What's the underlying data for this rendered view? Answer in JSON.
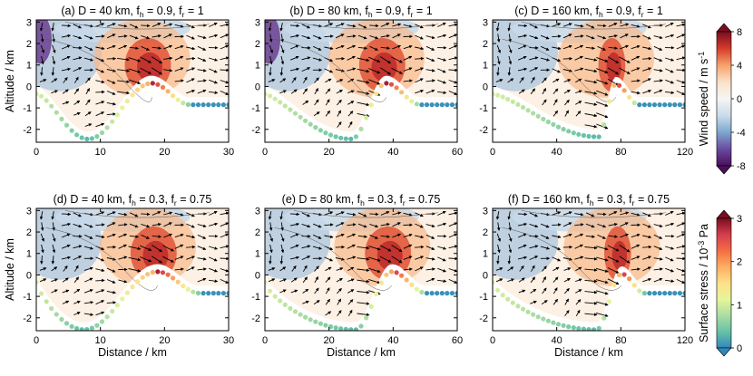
{
  "chart_data": [
    {
      "type": "vector-field",
      "title": "(a) D = 40 km, f_h = 0.9, f_r = 1",
      "title_parts": [
        "(a) D = 40 km, f",
        "h",
        " = 0.9, f",
        "r",
        " = 1"
      ],
      "domain_km": 40,
      "fh": 0.9,
      "fr": 1,
      "xlim": [
        0,
        30
      ],
      "xticks": [
        "0",
        "10",
        "20",
        "30"
      ],
      "ylim": [
        -2.6,
        3.1
      ],
      "yticks": [
        "-2",
        "-1",
        "0",
        "1",
        "2",
        "3"
      ],
      "ylabel": "Altitude / km",
      "xlabel": "",
      "valley_depth_km": 2.2
    },
    {
      "type": "vector-field",
      "title": "(b) D = 80 km, f_h = 0.9, f_r = 1",
      "title_parts": [
        "(b) D = 80 km, f",
        "h",
        " = 0.9, f",
        "r",
        " = 1"
      ],
      "domain_km": 80,
      "fh": 0.9,
      "fr": 1,
      "xlim": [
        0,
        60
      ],
      "xticks": [
        "0",
        "20",
        "40",
        "60"
      ],
      "ylim": [
        -2.6,
        3.1
      ],
      "yticks": [
        "-2",
        "-1",
        "0",
        "1",
        "2",
        "3"
      ],
      "ylabel": "",
      "xlabel": "",
      "valley_depth_km": 2.2
    },
    {
      "type": "vector-field",
      "title": "(c) D = 160 km, f_h = 0.9, f_r = 1",
      "title_parts": [
        "(c) D = 160 km, f",
        "h",
        " = 0.9, f",
        "r",
        " = 1"
      ],
      "domain_km": 160,
      "fh": 0.9,
      "fr": 1,
      "xlim": [
        0,
        120
      ],
      "xticks": [
        "0",
        "40",
        "80",
        "120"
      ],
      "ylim": [
        -2.6,
        3.1
      ],
      "yticks": [
        "-2",
        "-1",
        "0",
        "1",
        "2",
        "3"
      ],
      "ylabel": "",
      "xlabel": "",
      "valley_depth_km": 2.2
    },
    {
      "type": "vector-field",
      "title": "(d) D = 40 km, f_h = 0.3, f_r = 0.75",
      "title_parts": [
        "(d) D = 40 km, f",
        "h",
        " = 0.3, f",
        "r",
        " = 0.75"
      ],
      "domain_km": 40,
      "fh": 0.3,
      "fr": 0.75,
      "xlim": [
        0,
        30
      ],
      "xticks": [
        "0",
        "10",
        "20",
        "30"
      ],
      "ylim": [
        -2.6,
        3.1
      ],
      "yticks": [
        "-2",
        "-1",
        "0",
        "1",
        "2",
        "3"
      ],
      "ylabel": "Altitude / km",
      "xlabel": "Distance / km",
      "valley_depth_km": 2.3
    },
    {
      "type": "vector-field",
      "title": "(e) D = 80 km, f_h = 0.3, f_r = 0.75",
      "title_parts": [
        "(e) D = 80 km, f",
        "h",
        " = 0.3, f",
        "r",
        " = 0.75"
      ],
      "domain_km": 80,
      "fh": 0.3,
      "fr": 0.75,
      "xlim": [
        0,
        60
      ],
      "xticks": [
        "0",
        "20",
        "40",
        "60"
      ],
      "ylim": [
        -2.6,
        3.1
      ],
      "yticks": [
        "-2",
        "-1",
        "0",
        "1",
        "2",
        "3"
      ],
      "ylabel": "",
      "xlabel": "Distance / km",
      "valley_depth_km": 2.3
    },
    {
      "type": "vector-field",
      "title": "(f) D = 160 km, f_h = 0.3, f_r = 0.75",
      "title_parts": [
        "(f) D = 160 km, f",
        "h",
        " = 0.3, f",
        "r",
        " = 0.75"
      ],
      "domain_km": 160,
      "fh": 0.3,
      "fr": 0.75,
      "xlim": [
        0,
        120
      ],
      "xticks": [
        "0",
        "40",
        "80",
        "120"
      ],
      "ylim": [
        -2.6,
        3.1
      ],
      "yticks": [
        "-2",
        "-1",
        "0",
        "1",
        "2",
        "3"
      ],
      "ylabel": "",
      "xlabel": "Distance / km",
      "valley_depth_km": 2.3
    }
  ],
  "colorbars": [
    {
      "label": "Wind speed / m s",
      "label_sup": "-1",
      "ticks": [
        "8",
        "4",
        "0",
        "-4",
        "-8"
      ],
      "range": [
        -8,
        8
      ],
      "colors": [
        "#7a0d1f",
        "#d63b2a",
        "#f6a26c",
        "#fbe1c8",
        "#f5f5f5",
        "#cadcea",
        "#7da7cd",
        "#6a4ba0",
        "#4a0f5a"
      ]
    },
    {
      "label": "Surface stress / 10",
      "label_sup": "-3",
      "label_suffix": " Pa",
      "ticks": [
        "3",
        "2",
        "1",
        "0"
      ],
      "range": [
        0,
        3
      ],
      "colors": [
        "#7a0d1f",
        "#d43d4f",
        "#f46d43",
        "#fdae61",
        "#fee08b",
        "#e6f598",
        "#abdda4",
        "#66c2a5",
        "#3288bd"
      ]
    }
  ]
}
